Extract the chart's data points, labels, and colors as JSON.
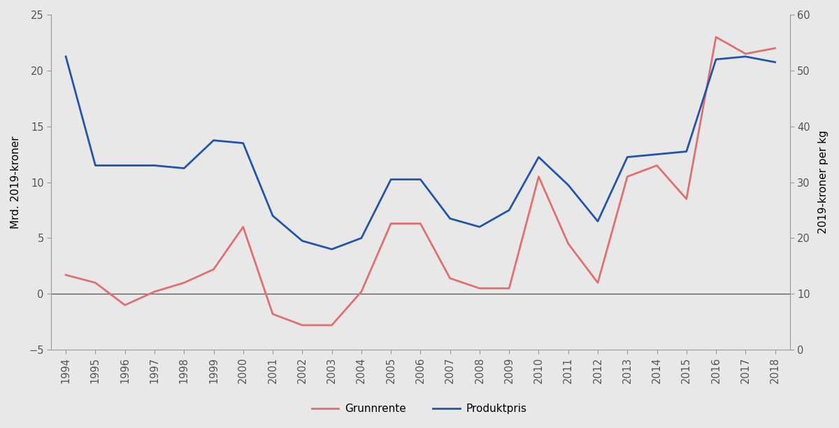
{
  "years": [
    1994,
    1995,
    1996,
    1997,
    1998,
    1999,
    2000,
    2001,
    2002,
    2003,
    2004,
    2005,
    2006,
    2007,
    2008,
    2009,
    2010,
    2011,
    2012,
    2013,
    2014,
    2015,
    2016,
    2017,
    2018
  ],
  "grunnrente": [
    1.7,
    1.0,
    -1.0,
    0.2,
    1.0,
    2.2,
    6.0,
    -1.8,
    -2.8,
    -2.8,
    0.2,
    6.3,
    6.3,
    1.4,
    0.5,
    0.5,
    10.5,
    4.5,
    1.0,
    10.5,
    11.5,
    8.5,
    23.0,
    21.5,
    22.0
  ],
  "produktpris": [
    52.5,
    33.0,
    33.0,
    33.0,
    32.5,
    37.5,
    37.0,
    24.0,
    19.5,
    18.0,
    20.0,
    30.5,
    30.5,
    23.5,
    22.0,
    25.0,
    34.5,
    29.5,
    23.0,
    34.5,
    35.0,
    35.5,
    52.0,
    52.5,
    51.5
  ],
  "grunnrente_color": "#E07070",
  "produktpris_color": "#2255AA",
  "background_color": "#E8E8E8",
  "ylabel_left": "Mrd. 2019-kroner",
  "ylabel_right": "2019-kroner per kg",
  "ylim_left": [
    -5,
    25
  ],
  "ylim_right": [
    0,
    60
  ],
  "yticks_left": [
    -5,
    0,
    5,
    10,
    15,
    20,
    25
  ],
  "yticks_right": [
    0,
    10,
    20,
    30,
    40,
    50,
    60
  ],
  "legend_grunnrente": "Grunnrente",
  "legend_produktpris": "Produktpris",
  "line_width": 2.0,
  "figsize": [
    12.0,
    6.12
  ],
  "dpi": 100,
  "spine_color": "#999999",
  "tick_color": "#555555",
  "font_size": 11,
  "tick_font_size": 10.5
}
